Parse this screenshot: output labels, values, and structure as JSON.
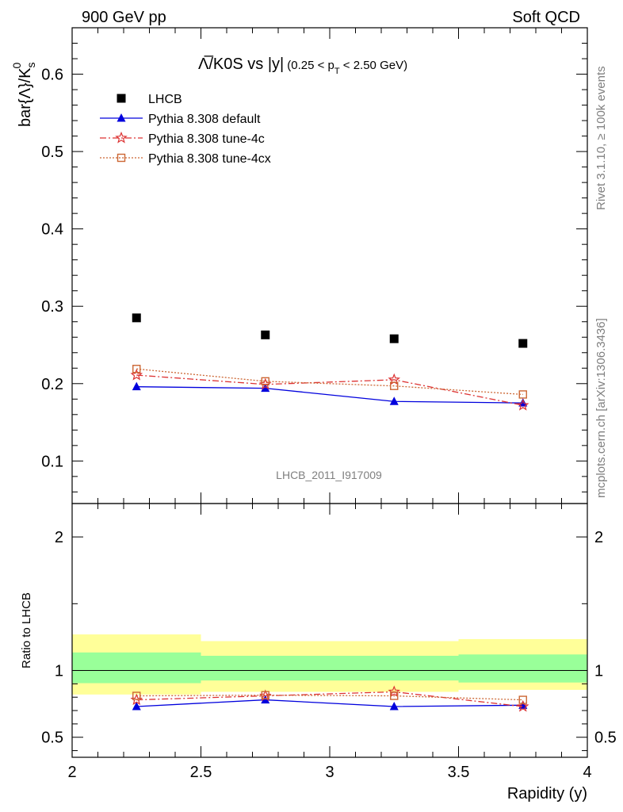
{
  "header": {
    "left": "900 GeV pp",
    "right": "Soft QCD"
  },
  "side_labels": {
    "rivet": "Rivet 3.1.10, ≥ 100k events",
    "mcplots": "mcplots.cern.ch [arXiv:1306.3436]"
  },
  "colors": {
    "data": "#000000",
    "default": "#0000dd",
    "tune4c": "#dd3333",
    "tune4cx": "#cc6633",
    "band_inner": "#99ff99",
    "band_outer": "#ffff99"
  },
  "chart_data": [
    {
      "type": "scatter",
      "title_main": "Λ̅/K0S vs |y|",
      "title_cut": "(0.25 < p",
      "title_cut_sub": "T",
      "title_cut_end": " < 2.50 GeV)",
      "ylabel": "bar{Λ}/K",
      "ylabel_sub": "s",
      "ylabel_sup": "0",
      "watermark": "LHCB_2011_I917009",
      "xlim": [
        2,
        4
      ],
      "ylim": [
        0.045,
        0.66
      ],
      "yticks": [
        0.1,
        0.2,
        0.3,
        0.4,
        0.5,
        0.6
      ],
      "ytick_labels": [
        "0.1",
        "0.2",
        "0.3",
        "0.4",
        "0.5",
        "0.6"
      ],
      "x": [
        2.25,
        2.75,
        3.25,
        3.75
      ],
      "series": [
        {
          "name": "LHCB",
          "key": "data",
          "values": [
            0.285,
            0.263,
            0.258,
            0.252
          ]
        },
        {
          "name": "Pythia 8.308 default",
          "key": "default",
          "values": [
            0.196,
            0.194,
            0.177,
            0.175
          ]
        },
        {
          "name": "Pythia 8.308 tune-4c",
          "key": "tune4c",
          "values": [
            0.211,
            0.199,
            0.205,
            0.172
          ]
        },
        {
          "name": "Pythia 8.308 tune-4cx",
          "key": "tune4cx",
          "values": [
            0.219,
            0.203,
            0.197,
            0.186
          ]
        }
      ]
    },
    {
      "type": "scatter",
      "ylabel": "Ratio to LHCB",
      "xlabel": "Rapidity (y)",
      "xlim": [
        2,
        4
      ],
      "ylim": [
        0.35,
        2.25
      ],
      "yticks": [
        0.5,
        1,
        2
      ],
      "ytick_labels": [
        "0.5",
        "1",
        "2"
      ],
      "xticks": [
        2,
        2.5,
        3,
        3.5,
        4
      ],
      "xtick_labels": [
        "2",
        "2.5",
        "3",
        "3.5",
        "4"
      ],
      "x": [
        2.25,
        2.75,
        3.25,
        3.75
      ],
      "bands": [
        {
          "x0": 2.0,
          "x1": 2.5,
          "inner": [
            0.905,
            1.135
          ],
          "outer": [
            0.82,
            1.27
          ]
        },
        {
          "x0": 2.5,
          "x1": 3.0,
          "inner": [
            0.925,
            1.11
          ],
          "outer": [
            0.84,
            1.22
          ]
        },
        {
          "x0": 3.0,
          "x1": 3.5,
          "inner": [
            0.925,
            1.11
          ],
          "outer": [
            0.84,
            1.22
          ]
        },
        {
          "x0": 3.5,
          "x1": 4.0,
          "inner": [
            0.91,
            1.12
          ],
          "outer": [
            0.855,
            1.235
          ]
        }
      ],
      "series": [
        {
          "name": "Pythia 8.308 default",
          "key": "default",
          "values": [
            0.73,
            0.78,
            0.73,
            0.74
          ]
        },
        {
          "name": "Pythia 8.308 tune-4c",
          "key": "tune4c",
          "values": [
            0.78,
            0.81,
            0.84,
            0.73
          ]
        },
        {
          "name": "Pythia 8.308 tune-4cx",
          "key": "tune4cx",
          "values": [
            0.81,
            0.815,
            0.81,
            0.78
          ]
        }
      ]
    }
  ]
}
